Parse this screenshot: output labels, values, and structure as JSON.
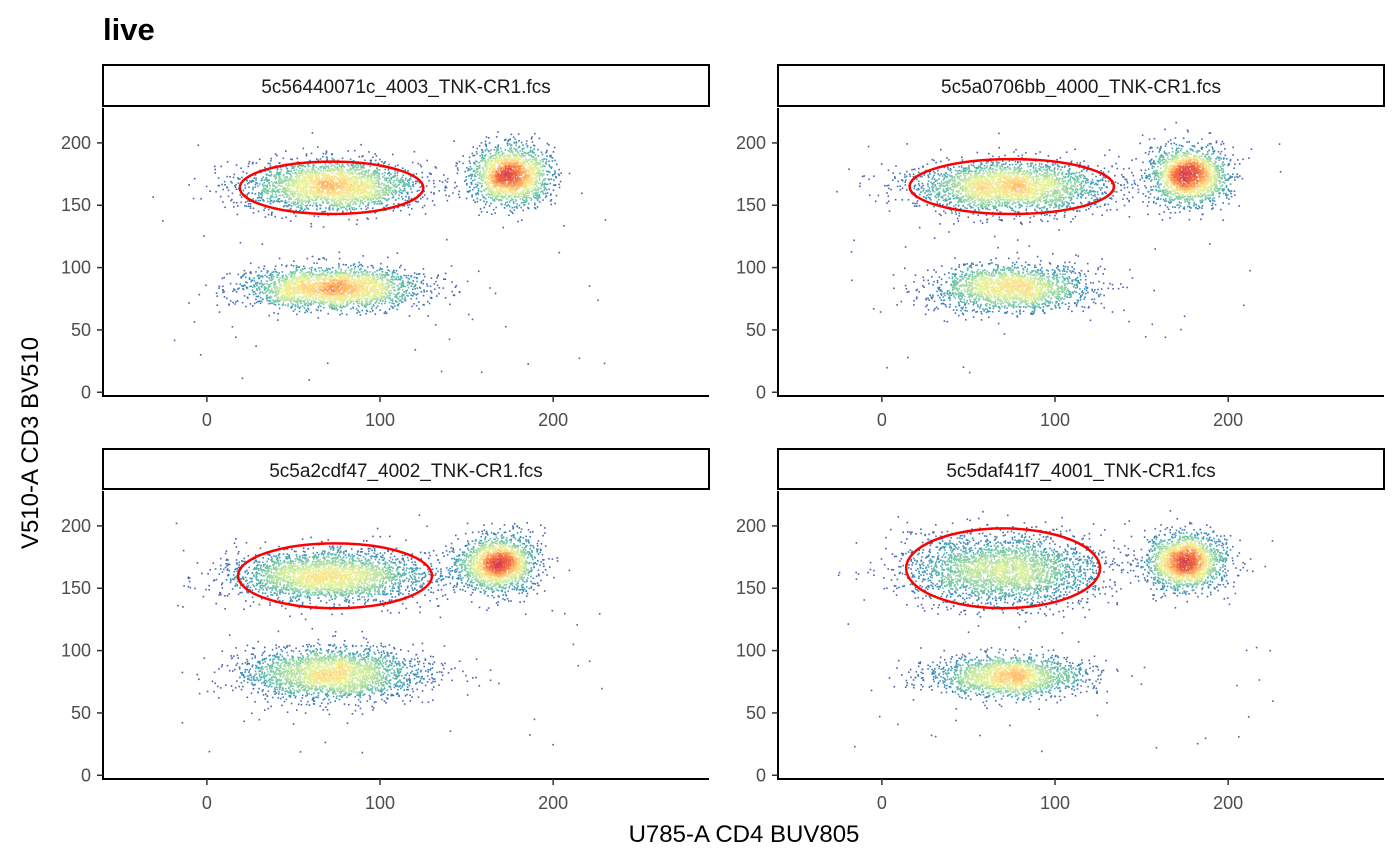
{
  "chart_data": {
    "type": "scatter",
    "title": "live",
    "xlabel": "U785-A CD4 BUV805",
    "ylabel": "V510-A CD3 BV510",
    "xlim": [
      -60,
      290
    ],
    "ylim": [
      -3,
      228
    ],
    "x_ticks": [
      0,
      100,
      200
    ],
    "y_ticks": [
      0,
      50,
      100,
      150,
      200
    ],
    "x_tick_labels": [
      "0",
      "100",
      "200"
    ],
    "y_tick_labels": [
      "0",
      "50",
      "100",
      "150",
      "200"
    ],
    "grid": false,
    "density_colormap": [
      "#5e4fa2",
      "#3288bd",
      "#66c2a5",
      "#abdda4",
      "#e6f598",
      "#fee08b",
      "#fdae61",
      "#f46d43",
      "#d53e4f"
    ],
    "gate_color": "#ff0000",
    "panels": [
      {
        "label": "5c56440071c_4003_TNK-CR1.fcs",
        "clusters": [
          {
            "cx": 72,
            "cy": 166,
            "sx": 25,
            "sy": 10,
            "n": 2600
          },
          {
            "cx": 175,
            "cy": 175,
            "sx": 11,
            "sy": 11,
            "n": 2000
          },
          {
            "cx": 72,
            "cy": 84,
            "sx": 25,
            "sy": 8,
            "n": 2600
          }
        ],
        "gate": {
          "cx": 72,
          "cy": 164,
          "rx": 53,
          "ry": 21
        }
      },
      {
        "label": "5c5a0706bb_4000_TNK-CR1.fcs",
        "clusters": [
          {
            "cx": 72,
            "cy": 165,
            "sx": 28,
            "sy": 10,
            "n": 2800
          },
          {
            "cx": 177,
            "cy": 174,
            "sx": 11,
            "sy": 11,
            "n": 2000
          },
          {
            "cx": 73,
            "cy": 84,
            "sx": 22,
            "sy": 9,
            "n": 2000
          }
        ],
        "gate": {
          "cx": 75,
          "cy": 165,
          "rx": 59,
          "ry": 22
        }
      },
      {
        "label": "5c5a2cdf47_4002_TNK-CR1.fcs",
        "clusters": [
          {
            "cx": 70,
            "cy": 160,
            "sx": 28,
            "sy": 10,
            "n": 2800
          },
          {
            "cx": 168,
            "cy": 170,
            "sx": 11,
            "sy": 11,
            "n": 2000
          },
          {
            "cx": 72,
            "cy": 82,
            "sx": 25,
            "sy": 10,
            "n": 2600
          }
        ],
        "gate": {
          "cx": 74,
          "cy": 160,
          "rx": 56,
          "ry": 26
        }
      },
      {
        "label": "5c5daf41f7_4001_TNK-CR1.fcs",
        "clusters": [
          {
            "cx": 70,
            "cy": 165,
            "sx": 28,
            "sy": 14,
            "n": 2800
          },
          {
            "cx": 175,
            "cy": 172,
            "sx": 11,
            "sy": 11,
            "n": 2000
          },
          {
            "cx": 73,
            "cy": 80,
            "sx": 22,
            "sy": 8,
            "n": 2000
          }
        ],
        "gate": {
          "cx": 70,
          "cy": 166,
          "rx": 56,
          "ry": 32
        }
      }
    ]
  }
}
